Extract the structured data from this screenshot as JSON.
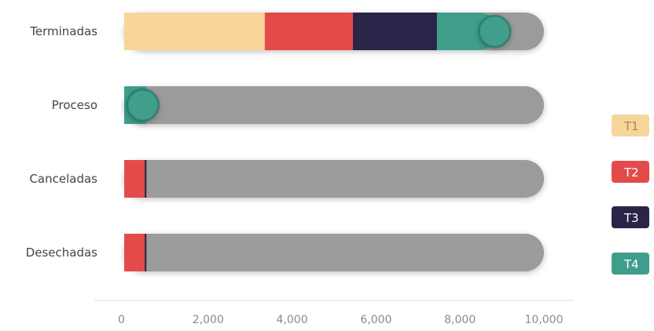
{
  "chart_data": {
    "type": "bar",
    "orientation": "horizontal",
    "stacked": true,
    "categories": [
      "Terminadas",
      "Proceso",
      "Canceladas",
      "Desechadas"
    ],
    "xlim": [
      0,
      10000
    ],
    "x_ticks": [
      "0",
      "2,000",
      "4,000",
      "6,000",
      "8,000",
      "10,000"
    ],
    "x_tick_values": [
      0,
      2000,
      4000,
      6000,
      8000,
      10000
    ],
    "series": [
      {
        "name": "T1",
        "color": "#f8d59a",
        "values": [
          2900,
          0,
          0,
          0
        ]
      },
      {
        "name": "T2",
        "color": "#e34b4b",
        "values": [
          2100,
          0,
          40,
          40
        ]
      },
      {
        "name": "T3",
        "color": "#2a2548",
        "values": [
          2000,
          0,
          40,
          40
        ]
      },
      {
        "name": "T4",
        "color": "#3f9e8b",
        "values": [
          1900,
          520,
          120,
          60
        ]
      }
    ],
    "track_color": "#9b9b9b",
    "marker_color": "#3f9e8b",
    "legend_position": "right",
    "grid": false
  }
}
